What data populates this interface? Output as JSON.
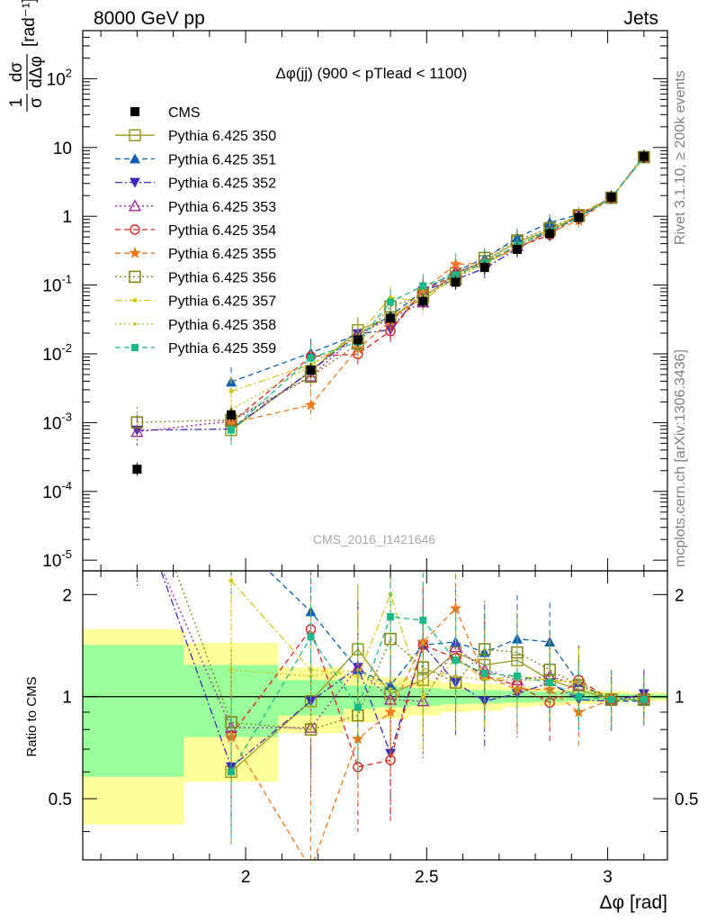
{
  "header": {
    "left": "8000 GeV pp",
    "right": "Jets",
    "side_top": "Rivet 3.1.10, ≥ 200k events",
    "side_bottom": "mcplots.cern.ch [arXiv:1306.3436]"
  },
  "chart_data": {
    "type": "scatter",
    "title": "Δφ(jj) (900 < pTlead < 1100)",
    "watermark": "CMS_2016_I1421646",
    "xlabel": "Δφ [rad]",
    "ylabel": "1/σ dσ/dΔφ [rad⁻¹]",
    "ratio_ylabel": "Ratio to CMS",
    "xlim": [
      1.55,
      3.165
    ],
    "ylim": [
      7e-06,
      500
    ],
    "ratio_ylim": [
      0.33,
      2.35
    ],
    "yscale": "log",
    "ratio_yscale": "log",
    "x_ticks": [
      "2",
      "2.5",
      "3"
    ],
    "y_ticks": [
      "10^-5",
      "10^-4",
      "10^-3",
      "10^-2",
      "10^-1",
      "1",
      "10",
      "10^2"
    ],
    "ratio_ticks": [
      "0.5",
      "1",
      "2"
    ],
    "legend_position": "top-left",
    "x": [
      1.7,
      1.96,
      2.18,
      2.31,
      2.4,
      2.49,
      2.58,
      2.66,
      2.75,
      2.84,
      2.92,
      3.01,
      3.1
    ],
    "data": {
      "name": "CMS",
      "values": [
        0.00021,
        0.0013,
        0.0058,
        0.016,
        0.033,
        0.058,
        0.11,
        0.18,
        0.33,
        0.56,
        0.96,
        1.9,
        7.4
      ],
      "band_bins": [
        1.55,
        1.83,
        2.09,
        2.27,
        2.36,
        2.45,
        2.54,
        2.62,
        2.71,
        2.79,
        2.88,
        2.97,
        3.06,
        3.165
      ],
      "band_stat": [
        0.42,
        0.24,
        0.12,
        0.08,
        0.07,
        0.06,
        0.05,
        0.045,
        0.04,
        0.035,
        0.03,
        0.02,
        0.015
      ],
      "band_total": [
        0.58,
        0.44,
        0.22,
        0.16,
        0.14,
        0.12,
        0.1,
        0.09,
        0.07,
        0.06,
        0.05,
        0.04,
        0.03
      ]
    },
    "series": [
      {
        "name": "Pythia 6.425 350",
        "color": "#99991a",
        "marker": "open-square",
        "line": "solid",
        "ratio": [
          null,
          0.6,
          0.97,
          1.38,
          1.02,
          1.12,
          1.35,
          1.24,
          1.28,
          1.12,
          1.05,
          0.98,
          0.98
        ]
      },
      {
        "name": "Pythia 6.425 351",
        "color": "#0a5fb4",
        "marker": "triangle-up",
        "line": "dashed",
        "ratio": [
          null,
          3.0,
          1.78,
          1.2,
          1.08,
          1.42,
          1.45,
          1.35,
          1.48,
          1.45,
          1.1,
          0.97,
          0.97
        ]
      },
      {
        "name": "Pythia 6.425 352",
        "color": "#3b2bb8",
        "marker": "triangle-down",
        "line": "dashdot",
        "ratio": [
          3.7,
          0.62,
          0.97,
          1.22,
          0.68,
          1.42,
          1.1,
          0.97,
          1.02,
          1.1,
          0.98,
          0.97,
          1.02
        ]
      },
      {
        "name": "Pythia 6.425 353",
        "color": "#a0209f",
        "marker": "open-triangle",
        "line": "dotted",
        "ratio": [
          3.5,
          0.81,
          0.81,
          1.22,
          0.98,
          0.97,
          1.4,
          1.2,
          1.12,
          1.15,
          1.08,
          0.98,
          1.0
        ]
      },
      {
        "name": "Pythia 6.425 354",
        "color": "#e02020",
        "marker": "open-circle",
        "line": "dashed",
        "ratio": [
          null,
          0.77,
          1.58,
          0.62,
          0.65,
          1.42,
          1.3,
          1.15,
          1.08,
          0.96,
          1.12,
          0.98,
          0.98
        ]
      },
      {
        "name": "Pythia 6.425 355",
        "color": "#f07818",
        "marker": "star",
        "line": "dashed",
        "ratio": [
          null,
          0.76,
          0.31,
          0.75,
          0.9,
          1.45,
          1.82,
          1.15,
          1.05,
          1.05,
          0.9,
          0.98,
          0.98
        ]
      },
      {
        "name": "Pythia 6.425 356",
        "color": "#808012",
        "marker": "open-square",
        "line": "dotted",
        "ratio": [
          4.8,
          0.84,
          0.8,
          0.88,
          1.48,
          1.22,
          1.1,
          1.38,
          1.35,
          1.2,
          1.08,
          0.98,
          0.98
        ]
      },
      {
        "name": "Pythia 6.425 357",
        "color": "#d6c81a",
        "marker": "dot",
        "line": "dashdot",
        "ratio": [
          null,
          2.2,
          1.2,
          1.15,
          2.0,
          1.0,
          1.3,
          1.12,
          1.15,
          1.12,
          1.1,
          0.98,
          0.98
        ]
      },
      {
        "name": "Pythia 6.425 358",
        "color": "#bfbf1a",
        "marker": "small-dot",
        "line": "dotted",
        "ratio": [
          null,
          1.2,
          1.15,
          1.2,
          1.05,
          1.2,
          1.15,
          1.12,
          1.12,
          1.12,
          1.1,
          0.98,
          0.98
        ]
      },
      {
        "name": "Pythia 6.425 359",
        "color": "#19b98a",
        "marker": "square",
        "line": "dashed",
        "ratio": [
          null,
          0.6,
          1.5,
          0.93,
          1.72,
          1.68,
          1.28,
          1.17,
          1.15,
          1.1,
          1.0,
          0.98,
          0.98
        ]
      }
    ]
  }
}
